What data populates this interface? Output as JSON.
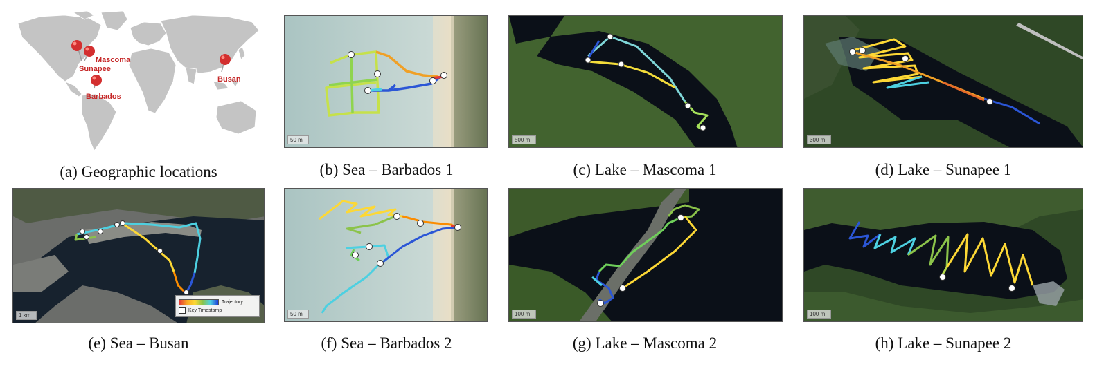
{
  "panels": [
    {
      "id": "a",
      "caption": "(a) Geographic locations"
    },
    {
      "id": "b",
      "caption": "(b) Sea – Barbados 1",
      "scale": "50 m"
    },
    {
      "id": "c",
      "caption": "(c) Lake – Mascoma 1",
      "scale": "500 m"
    },
    {
      "id": "d",
      "caption": "(d) Lake – Sunapee 1",
      "scale": "300 m"
    },
    {
      "id": "e",
      "caption": "(e) Sea – Busan",
      "scale": "1 km"
    },
    {
      "id": "f",
      "caption": "(f) Sea – Barbados 2",
      "scale": "50 m"
    },
    {
      "id": "g",
      "caption": "(g) Lake – Mascoma 2",
      "scale": "100 m"
    },
    {
      "id": "h",
      "caption": "(h) Lake – Sunapee 2",
      "scale": "100 m"
    }
  ],
  "locations": {
    "mascoma": "Mascoma",
    "sunapee": "Sunapee",
    "barbados": "Barbados",
    "busan": "Busan"
  },
  "legend": {
    "trajectory": "Trajectory",
    "key_timestamp": "Key Timestamp"
  },
  "colors": {
    "pin": "#d32f2f",
    "land": "#c4c4c4",
    "water_lake": "#0b1018",
    "sea": "#b9cfcf",
    "forest": "#3d5a2a"
  },
  "trajectory_gradient": [
    "#e53935",
    "#fb8c00",
    "#fdd835",
    "#8bc34a",
    "#4dd0e1",
    "#1e3fd8"
  ]
}
